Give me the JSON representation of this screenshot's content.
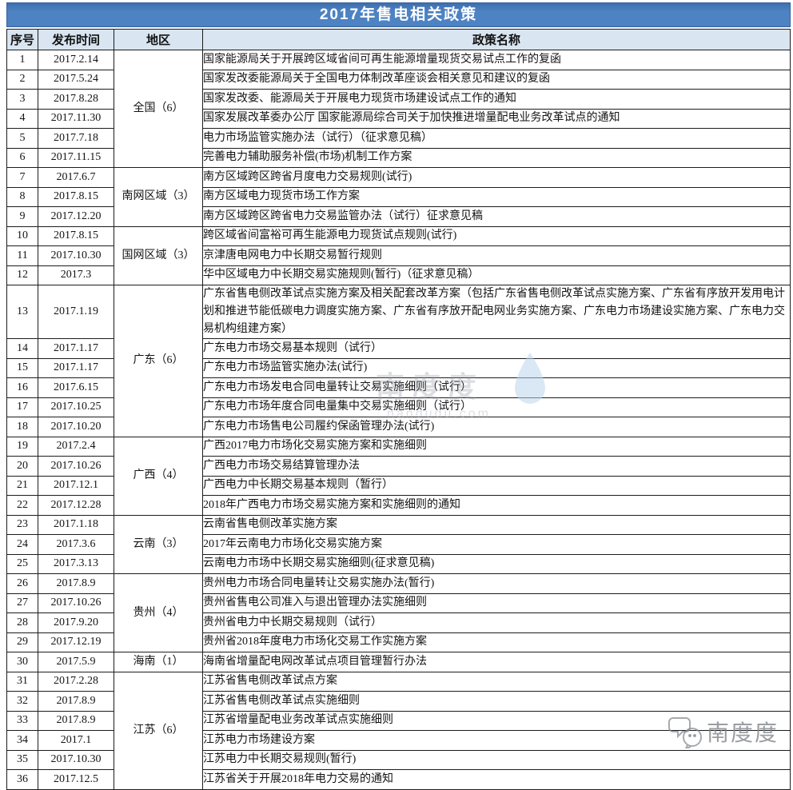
{
  "chart_data": {
    "type": "table",
    "title": "2017年售电相关政策",
    "columns": [
      "序号",
      "发布时间",
      "地区",
      "政策名称"
    ],
    "regions": [
      {
        "label": "全国（6）",
        "rows": [
          {
            "no": "1",
            "date": "2017.2.14",
            "policy": "国家能源局关于开展跨区域省间可再生能源增量现货交易试点工作的复函"
          },
          {
            "no": "2",
            "date": "2017.5.24",
            "policy": "国家发改委能源局关于全国电力体制改革座谈会相关意见和建议的复函"
          },
          {
            "no": "3",
            "date": "2017.8.28",
            "policy": "国家发改委、能源局关于开展电力现货市场建设试点工作的通知"
          },
          {
            "no": "4",
            "date": "2017.11.30",
            "policy": "国家发展改革委办公厅 国家能源局综合司关于加快推进增量配电业务改革试点的通知"
          },
          {
            "no": "5",
            "date": "2017.7.18",
            "policy": "电力市场监管实施办法（试行）（征求意见稿）"
          },
          {
            "no": "6",
            "date": "2017.11.15",
            "policy": "完善电力辅助服务补偿(市场)机制工作方案"
          }
        ]
      },
      {
        "label": "南网区域（3）",
        "rows": [
          {
            "no": "7",
            "date": "2017.6.7",
            "policy": "南方区域跨区跨省月度电力交易规则(试行)"
          },
          {
            "no": "8",
            "date": "2017.8.15",
            "policy": "南方区域电力现货市场工作方案"
          },
          {
            "no": "9",
            "date": "2017.12.20",
            "policy": "南方区域跨区跨省电力交易监管办法（试行）征求意见稿"
          }
        ]
      },
      {
        "label": "国网区域（3）",
        "rows": [
          {
            "no": "10",
            "date": "2017.8.15",
            "policy": "跨区域省间富裕可再生能源电力现货试点规则(试行)"
          },
          {
            "no": "11",
            "date": "2017.10.30",
            "policy": "京津唐电网电力中长期交易暂行规则"
          },
          {
            "no": "12",
            "date": "2017.3",
            "policy": "华中区域电力中长期交易实施规则(暂行)（征求意见稿）"
          }
        ]
      },
      {
        "label": "广东（6）",
        "rows": [
          {
            "no": "13",
            "date": "2017.1.19",
            "policy": "广东省售电侧改革试点实施方案及相关配套改革方案（包括广东省售电侧改革试点实施方案、广东省有序放开发用电计划和推进节能低碳电力调度实施方案、广东省有序放开配电网业务实施方案、广东电力市场建设实施方案、广东电力交易机构组建方案）"
          },
          {
            "no": "14",
            "date": "2017.1.17",
            "policy": "广东电力市场交易基本规则（试行）"
          },
          {
            "no": "15",
            "date": "2017.1.17",
            "policy": "广东电力市场监管实施办法(试行)"
          },
          {
            "no": "16",
            "date": "2017.6.15",
            "policy": "广东电力市场发电合同电量转让交易实施细则（试行）"
          },
          {
            "no": "17",
            "date": "2017.10.25",
            "policy": "广东电力市场年度合同电量集中交易实施细则（试行）"
          },
          {
            "no": "18",
            "date": "2017.10.20",
            "policy": "广东电力市场售电公司履约保函管理办法(试行)"
          }
        ]
      },
      {
        "label": "广西（4）",
        "rows": [
          {
            "no": "19",
            "date": "2017.2.4",
            "policy": "广西2017电力市场化交易实施方案和实施细则"
          },
          {
            "no": "20",
            "date": "2017.10.26",
            "policy": "广西电力市场交易结算管理办法"
          },
          {
            "no": "21",
            "date": "2017.12.1",
            "policy": "广西电力中长期交易基本规则（暂行）"
          },
          {
            "no": "22",
            "date": "2017.12.28",
            "policy": "2018年广西电力市场交易实施方案和实施细则的通知"
          }
        ]
      },
      {
        "label": "云南（3）",
        "rows": [
          {
            "no": "23",
            "date": "2017.1.18",
            "policy": "云南省售电侧改革实施方案"
          },
          {
            "no": "24",
            "date": "2017.3.6",
            "policy": "2017年云南电力市场化交易实施方案"
          },
          {
            "no": "25",
            "date": "2017.3.13",
            "policy": "云南电力市场中长期交易实施细则(征求意见稿)"
          }
        ]
      },
      {
        "label": "贵州（4）",
        "rows": [
          {
            "no": "26",
            "date": "2017.8.9",
            "policy": "贵州电力市场合同电量转让交易实施办法(暂行)"
          },
          {
            "no": "27",
            "date": "2017.10.26",
            "policy": "贵州省售电公司准入与退出管理办法实施细则"
          },
          {
            "no": "28",
            "date": "2017.9.20",
            "policy": "贵州省电力中长期交易规则（试行）"
          },
          {
            "no": "29",
            "date": "2017.12.19",
            "policy": "贵州省2018年度电力市场化交易工作实施方案"
          }
        ]
      },
      {
        "label": "海南（1）",
        "rows": [
          {
            "no": "30",
            "date": "2017.5.9",
            "policy": "海南省增量配电网改革试点项目管理暂行办法"
          }
        ]
      },
      {
        "label": "江苏（6）",
        "rows": [
          {
            "no": "31",
            "date": "2017.2.28",
            "policy": "江苏省售电侧改革试点方案"
          },
          {
            "no": "32",
            "date": "2017.8.9",
            "policy": "江苏省售电侧改革试点实施细则"
          },
          {
            "no": "33",
            "date": "2017.8.9",
            "policy": "江苏省增量配电业务改革试点实施细则"
          },
          {
            "no": "34",
            "date": "2017.1",
            "policy": "江苏电力市场建设方案"
          },
          {
            "no": "35",
            "date": "2017.10.30",
            "policy": "江苏电力中长期交易规则(暂行)"
          },
          {
            "no": "36",
            "date": "2017.12.5",
            "policy": "江苏省关于开展2018年电力交易的通知"
          }
        ]
      }
    ]
  },
  "watermark_center": {
    "text": "南度度",
    "domain": "nandudu.com"
  },
  "watermark_corner": {
    "text": "南度度"
  },
  "colors": {
    "title_bg": "#4d82c3",
    "title_text": "#ffffff",
    "header_bg": "#d9e5f1",
    "border": "#1c1c1c",
    "watermark_drop": "#bcd7ee"
  }
}
